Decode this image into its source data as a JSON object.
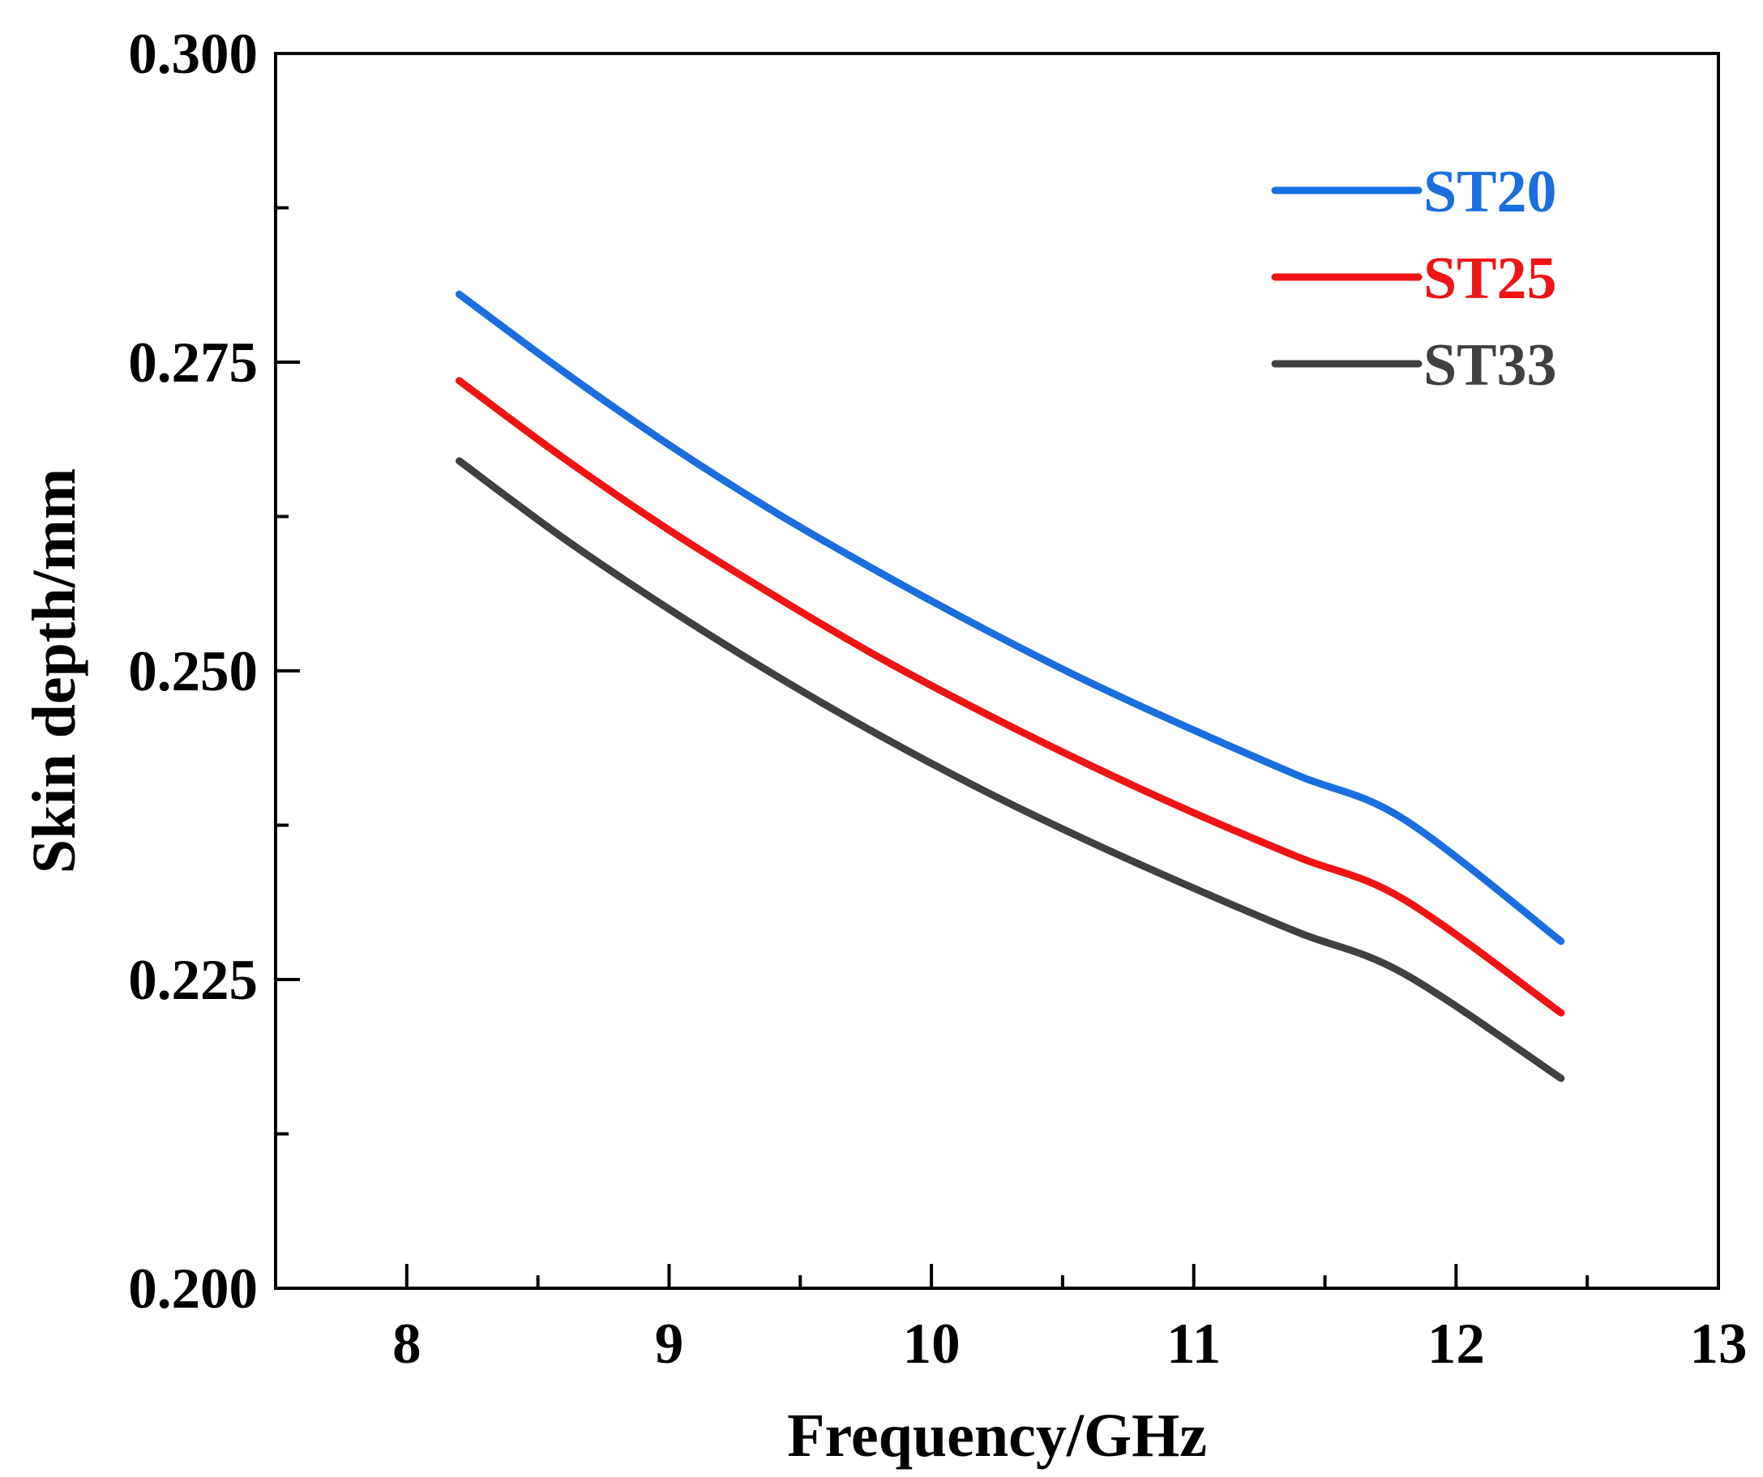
{
  "chart_data": {
    "type": "line",
    "title": "",
    "xlabel": "Frequency/GHz",
    "ylabel": "Skin depth/mm",
    "xlim": [
      7.5,
      13
    ],
    "ylim": [
      0.2,
      0.3
    ],
    "x_major_ticks": [
      8,
      9,
      10,
      11,
      12,
      13
    ],
    "x_tick_labels": [
      "8",
      "9",
      "10",
      "11",
      "12",
      "13"
    ],
    "x_minor_ticks": [
      8.5,
      9.5,
      10.5,
      11.5,
      12.5
    ],
    "y_major_ticks": [
      0.2,
      0.225,
      0.25,
      0.275,
      0.3
    ],
    "y_tick_labels": [
      "0.200",
      "0.225",
      "0.250",
      "0.275",
      "0.300"
    ],
    "y_minor_ticks": [
      0.2125,
      0.2375,
      0.2625,
      0.2875
    ],
    "grid": false,
    "legend_position": "top-right",
    "x": [
      8.2,
      8.6,
      9.0,
      9.4,
      9.8,
      10.2,
      10.6,
      11.0,
      11.4,
      11.8,
      12.4
    ],
    "series": [
      {
        "name": "ST20",
        "color": "#1a6fe0",
        "values": [
          0.2805,
          0.2742,
          0.2683,
          0.2629,
          0.258,
          0.2534,
          0.2491,
          0.2452,
          0.2415,
          0.238,
          0.2281
        ]
      },
      {
        "name": "ST25",
        "color": "#f01414",
        "values": [
          0.2735,
          0.2672,
          0.2614,
          0.2561,
          0.2511,
          0.2466,
          0.2424,
          0.2385,
          0.2349,
          0.2315,
          0.2223
        ]
      },
      {
        "name": "ST33",
        "color": "#404040",
        "values": [
          0.267,
          0.2607,
          0.255,
          0.2497,
          0.2448,
          0.2403,
          0.2362,
          0.2324,
          0.2288,
          0.2255,
          0.217
        ]
      }
    ]
  }
}
